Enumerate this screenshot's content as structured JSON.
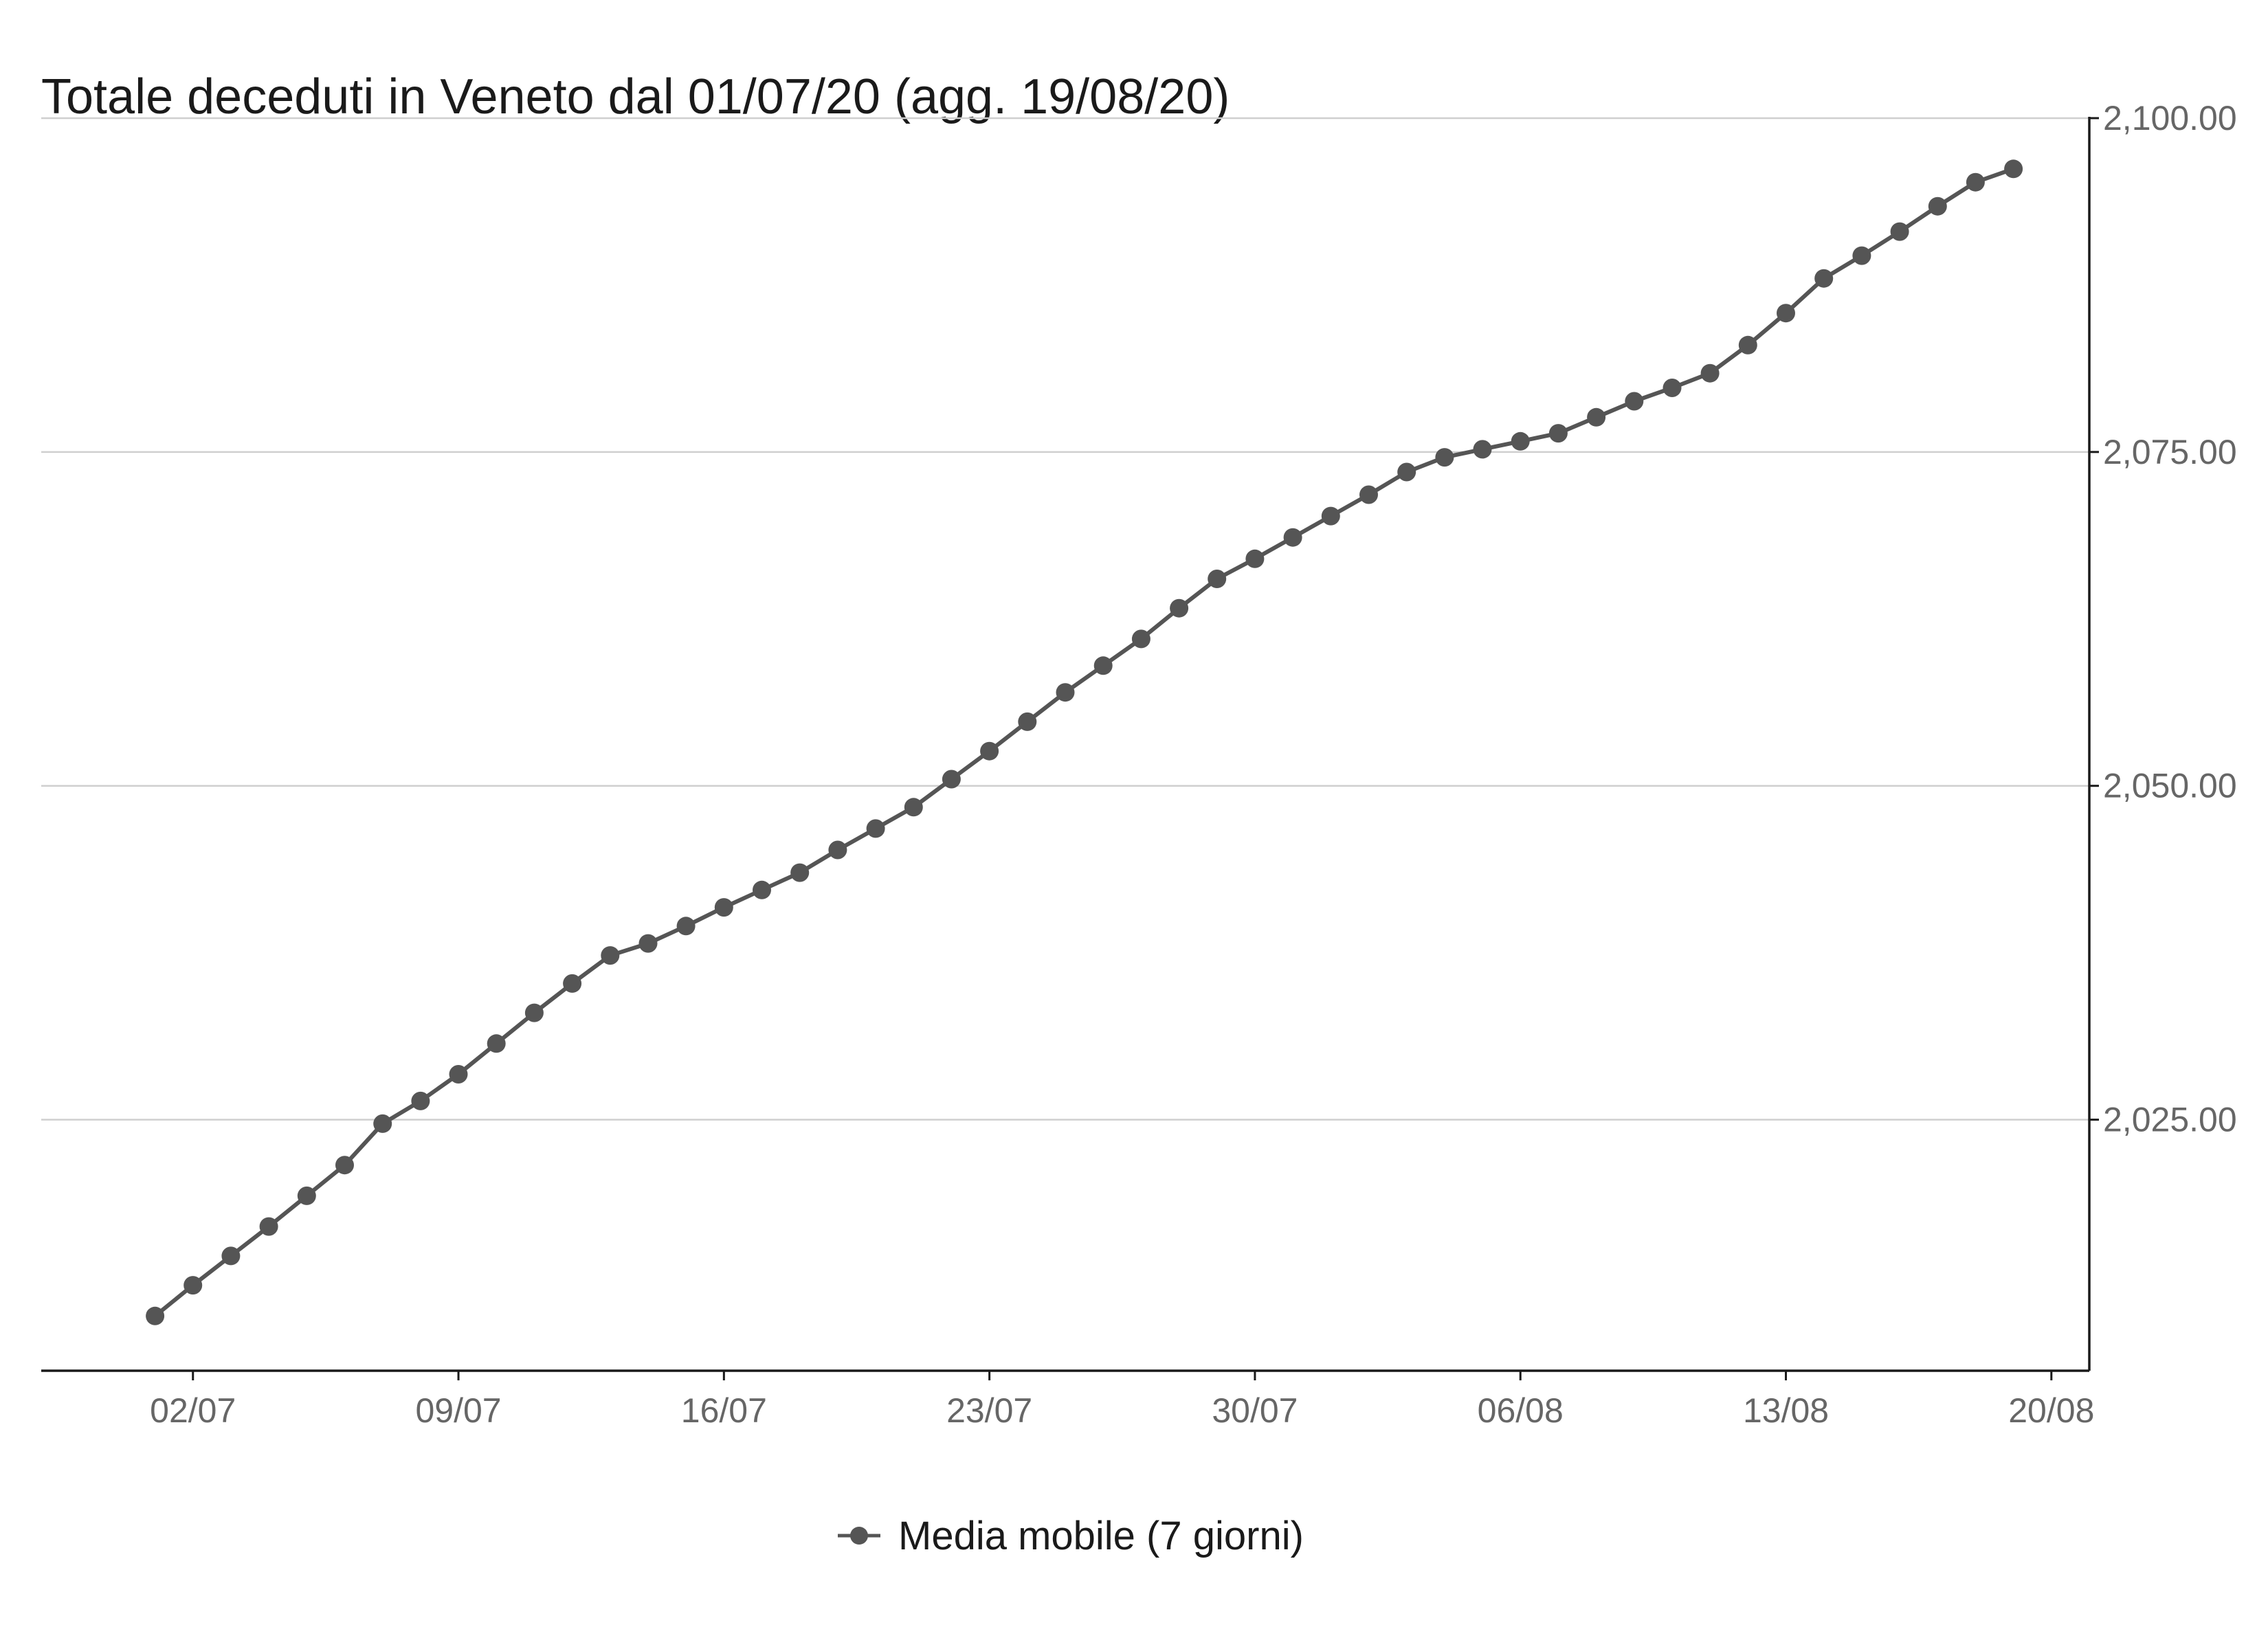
{
  "chart_data": {
    "type": "line",
    "title": "Totale deceduti in Veneto dal 01/07/20 (agg. 19/08/20)",
    "xlabel": "",
    "ylabel": "",
    "x_ticks": [
      {
        "date": "2020-07-02",
        "label": "02/07"
      },
      {
        "date": "2020-07-09",
        "label": "09/07"
      },
      {
        "date": "2020-07-16",
        "label": "16/07"
      },
      {
        "date": "2020-07-23",
        "label": "23/07"
      },
      {
        "date": "2020-07-30",
        "label": "30/07"
      },
      {
        "date": "2020-08-06",
        "label": "06/08"
      },
      {
        "date": "2020-08-13",
        "label": "13/08"
      },
      {
        "date": "2020-08-20",
        "label": "20/08"
      }
    ],
    "xlim": [
      "2020-06-28",
      "2020-08-21"
    ],
    "y_ticks": [
      {
        "value": 2025,
        "label": "2,025.00"
      },
      {
        "value": 2050,
        "label": "2,050.00"
      },
      {
        "value": 2075,
        "label": "2,075.00"
      },
      {
        "value": 2100,
        "label": "2,100.00"
      }
    ],
    "ylim": [
      2006.2,
      2100.1
    ],
    "y_axis_position": "right",
    "grid": "horizontal",
    "legend_position": "bottom",
    "series": [
      {
        "name": "Media mobile (7 giorni)",
        "color": "#555555",
        "x": [
          "2020-07-01",
          "2020-07-02",
          "2020-07-03",
          "2020-07-04",
          "2020-07-05",
          "2020-07-06",
          "2020-07-07",
          "2020-07-08",
          "2020-07-09",
          "2020-07-10",
          "2020-07-11",
          "2020-07-12",
          "2020-07-13",
          "2020-07-14",
          "2020-07-15",
          "2020-07-16",
          "2020-07-17",
          "2020-07-18",
          "2020-07-19",
          "2020-07-20",
          "2020-07-21",
          "2020-07-22",
          "2020-07-23",
          "2020-07-24",
          "2020-07-25",
          "2020-07-26",
          "2020-07-27",
          "2020-07-28",
          "2020-07-29",
          "2020-07-30",
          "2020-07-31",
          "2020-08-01",
          "2020-08-02",
          "2020-08-03",
          "2020-08-04",
          "2020-08-05",
          "2020-08-06",
          "2020-08-07",
          "2020-08-08",
          "2020-08-09",
          "2020-08-10",
          "2020-08-11",
          "2020-08-12",
          "2020-08-13",
          "2020-08-14",
          "2020-08-15",
          "2020-08-16",
          "2020-08-17",
          "2020-08-18",
          "2020-08-19"
        ],
        "values": [
          2010.3,
          2012.6,
          2014.8,
          2017.0,
          2019.3,
          2021.6,
          2024.7,
          2026.4,
          2028.4,
          2030.7,
          2033.0,
          2035.2,
          2037.3,
          2038.2,
          2039.5,
          2040.9,
          2042.2,
          2043.5,
          2045.2,
          2046.8,
          2048.4,
          2050.5,
          2052.6,
          2054.8,
          2057.0,
          2059.0,
          2061.0,
          2063.3,
          2065.5,
          2067.0,
          2068.6,
          2070.2,
          2071.8,
          2073.5,
          2074.6,
          2075.2,
          2075.8,
          2076.4,
          2077.6,
          2078.8,
          2079.8,
          2080.9,
          2083.0,
          2085.4,
          2088.0,
          2089.7,
          2091.5,
          2093.4,
          2095.2,
          2096.2
        ]
      }
    ]
  }
}
